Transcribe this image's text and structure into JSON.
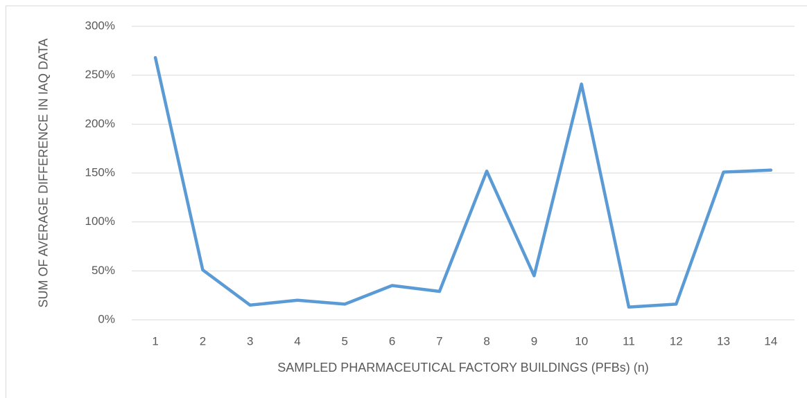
{
  "chart_data": {
    "type": "line",
    "y_label": "SUM OF AVERAGE DIFFERENCE IN IAQ DATA",
    "x_label": "SAMPLED PHARMACEUTICAL FACTORY BUILDINGS (PFBs) (n)",
    "categories": [
      "1",
      "2",
      "3",
      "4",
      "5",
      "6",
      "7",
      "8",
      "9",
      "10",
      "11",
      "12",
      "13",
      "14"
    ],
    "values": [
      268,
      51,
      15,
      20,
      16,
      35,
      29,
      152,
      45,
      241,
      13,
      16,
      151,
      153
    ],
    "color": "#5b9bd5",
    "ylim": [
      0,
      300
    ],
    "yticks": [
      {
        "value": 0,
        "label": "0%"
      },
      {
        "value": 50,
        "label": "50%"
      },
      {
        "value": 100,
        "label": "100%"
      },
      {
        "value": 150,
        "label": "150%"
      },
      {
        "value": 200,
        "label": "200%"
      },
      {
        "value": 250,
        "label": "250%"
      },
      {
        "value": 300,
        "label": "300%"
      }
    ],
    "grid": true
  }
}
